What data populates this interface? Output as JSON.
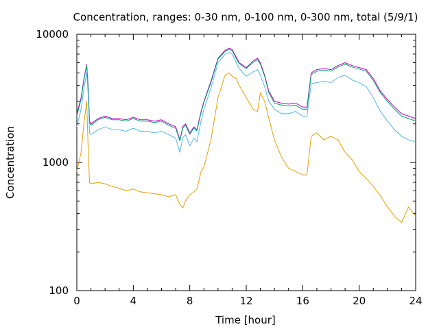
{
  "chart_data": {
    "type": "line",
    "title": "Concentration, ranges: 0-30 nm, 0-100 nm, 0-300 nm, total (5/9/1)",
    "xlabel": "Time [hour]",
    "ylabel": "Concentration",
    "xlim": [
      0,
      24
    ],
    "ylim": [
      100,
      10000
    ],
    "yscale": "log",
    "grid": false,
    "legend": "none",
    "x_ticks": [
      "0",
      "4",
      "8",
      "12",
      "16",
      "20",
      "24"
    ],
    "y_ticks": [
      "100",
      "1000",
      "10000"
    ],
    "x": [
      0.0,
      0.3,
      0.5,
      0.7,
      0.8,
      0.9,
      1.0,
      1.5,
      2.0,
      2.5,
      3.0,
      3.5,
      4.0,
      4.5,
      5.0,
      5.5,
      6.0,
      6.5,
      7.0,
      7.3,
      7.5,
      7.7,
      8.0,
      8.3,
      8.5,
      8.8,
      9.0,
      9.5,
      10.0,
      10.5,
      10.8,
      11.0,
      11.3,
      11.5,
      12.0,
      12.5,
      12.8,
      13.0,
      13.3,
      13.6,
      14.0,
      14.5,
      15.0,
      15.5,
      16.0,
      16.3,
      16.6,
      17.0,
      17.5,
      18.0,
      18.5,
      19.0,
      19.5,
      20.0,
      20.5,
      21.0,
      21.5,
      22.0,
      22.5,
      23.0,
      23.5,
      24.0
    ],
    "series": [
      {
        "color": "#c000c0",
        "values": [
          2400,
          3200,
          4500,
          5800,
          4000,
          2100,
          2000,
          2200,
          2300,
          2200,
          2200,
          2150,
          2250,
          2150,
          2150,
          2100,
          2150,
          2000,
          1900,
          1500,
          1900,
          2000,
          1700,
          1900,
          1800,
          2500,
          3000,
          4300,
          6500,
          7500,
          7800,
          7600,
          6600,
          6000,
          5500,
          6200,
          6500,
          6000,
          4800,
          3600,
          3000,
          2900,
          2850,
          2900,
          2700,
          2700,
          5000,
          5300,
          5400,
          5300,
          5700,
          6000,
          5700,
          5500,
          5300,
          4500,
          3600,
          3100,
          2700,
          2400,
          2300,
          2200
        ]
      },
      {
        "color": "#009e73",
        "values": [
          2300,
          3100,
          4400,
          5700,
          3900,
          2050,
          1950,
          2150,
          2250,
          2150,
          2150,
          2100,
          2200,
          2100,
          2100,
          2050,
          2100,
          1950,
          1850,
          1470,
          1850,
          1950,
          1660,
          1850,
          1760,
          2450,
          2950,
          4200,
          6400,
          7350,
          7650,
          7450,
          6450,
          5900,
          5400,
          6050,
          6350,
          5850,
          4700,
          3500,
          2900,
          2800,
          2750,
          2800,
          2600,
          2600,
          4850,
          5150,
          5250,
          5150,
          5550,
          5850,
          5550,
          5350,
          5150,
          4350,
          3500,
          3000,
          2600,
          2300,
          2200,
          2100
        ]
      },
      {
        "color": "#56b4e9",
        "values": [
          1900,
          2600,
          3800,
          5000,
          3400,
          1700,
          1650,
          1800,
          1900,
          1800,
          1800,
          1750,
          1850,
          1750,
          1750,
          1700,
          1750,
          1650,
          1550,
          1200,
          1550,
          1650,
          1350,
          1550,
          1450,
          2100,
          2600,
          3800,
          6000,
          7000,
          7200,
          7000,
          6000,
          5400,
          4700,
          5100,
          5300,
          4800,
          3900,
          3000,
          2600,
          2400,
          2400,
          2500,
          2300,
          2300,
          4100,
          4200,
          4300,
          4200,
          4600,
          4800,
          4400,
          4200,
          3900,
          3200,
          2500,
          2100,
          1800,
          1600,
          1500,
          1450
        ]
      },
      {
        "color": "#e69f00",
        "values": [
          850,
          1200,
          2000,
          3000,
          1300,
          700,
          680,
          700,
          680,
          650,
          630,
          600,
          620,
          590,
          580,
          570,
          560,
          540,
          560,
          470,
          440,
          500,
          560,
          590,
          620,
          850,
          920,
          1500,
          3200,
          4800,
          5000,
          4700,
          4500,
          4000,
          3200,
          2600,
          2500,
          3500,
          3000,
          2200,
          1500,
          1100,
          900,
          850,
          800,
          800,
          1600,
          1700,
          1500,
          1600,
          1500,
          1200,
          1050,
          850,
          750,
          650,
          550,
          450,
          380,
          340,
          450,
          380
        ]
      }
    ]
  }
}
